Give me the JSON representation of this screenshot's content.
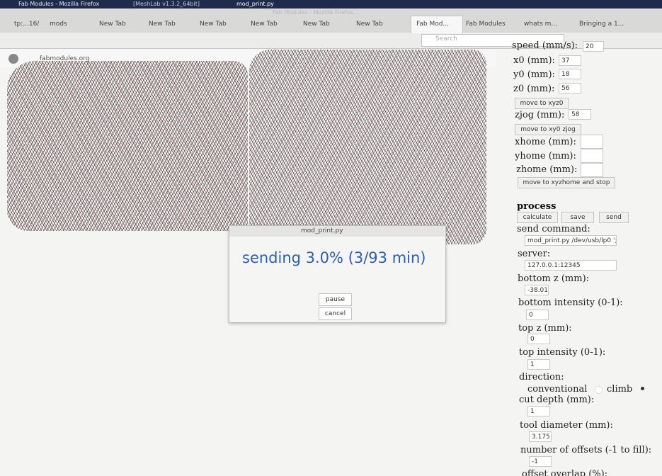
{
  "taskbar": {
    "items": [
      "Fab Modules - Mozilla Firefox",
      "[MeshLab v1.3.2_64bit]",
      "mod_print.py"
    ]
  },
  "window_title": "Fab Modules - Mozilla Firefox",
  "tabs": [
    "tp:...16/",
    "mods",
    "New Tab",
    "New Tab",
    "New Tab",
    "New Tab",
    "New Tab",
    "New Tab",
    "Fab Mod...",
    "Fab Modules",
    "whats m...",
    "Bringing a 1..."
  ],
  "search_placeholder": "Search",
  "url": "fabmodules.org",
  "panel": {
    "speed": {
      "label": "speed (mm/s):",
      "value": "20"
    },
    "x0": {
      "label": "x0 (mm):",
      "value": "37"
    },
    "y0": {
      "label": "y0 (mm):",
      "value": "18"
    },
    "z0": {
      "label": "z0 (mm):",
      "value": "56"
    },
    "move_xyz0": "move to xyz0",
    "zjog": {
      "label": "zjog (mm):",
      "value": "58"
    },
    "move_xy0_zjog": "move to xy0 zjog",
    "xhome": {
      "label": "xhome (mm):"
    },
    "yhome": {
      "label": "yhome (mm):"
    },
    "zhome": {
      "label": "zhome (mm):"
    },
    "move_home": "move to xyzhome and stop",
    "process": {
      "heading": "process",
      "buttons": [
        "calculate",
        "save",
        "send"
      ]
    },
    "send_command": {
      "label": "send command:",
      "value": "mod_print.py /dev/usb/lp0 ';"
    },
    "server": {
      "label": "server:",
      "value": "127.0.0.1:12345"
    },
    "bottom_z": {
      "label": "bottom z (mm):",
      "value": "-38.01"
    },
    "bottom_intensity": {
      "label": "bottom intensity (0-1):",
      "value": "0"
    },
    "top_z": {
      "label": "top z (mm):",
      "value": "0"
    },
    "top_intensity": {
      "label": "top intensity (0-1):",
      "value": "1"
    },
    "direction": {
      "label": "direction:",
      "options": [
        "conventional",
        "climb"
      ]
    },
    "cut_depth": {
      "label": "cut depth (mm):",
      "value": "1"
    },
    "tool_diameter": {
      "label": "tool diameter (mm):",
      "value": "3.175"
    },
    "offsets": {
      "label": "number of offsets (-1 to fill):",
      "value": "-1"
    },
    "offset_overlap": {
      "label": "offset overlap (%):"
    }
  },
  "dialog": {
    "title": "mod_print.py",
    "message": "sending 3.0% (3/93 min)",
    "buttons": [
      "pause",
      "cancel"
    ]
  }
}
